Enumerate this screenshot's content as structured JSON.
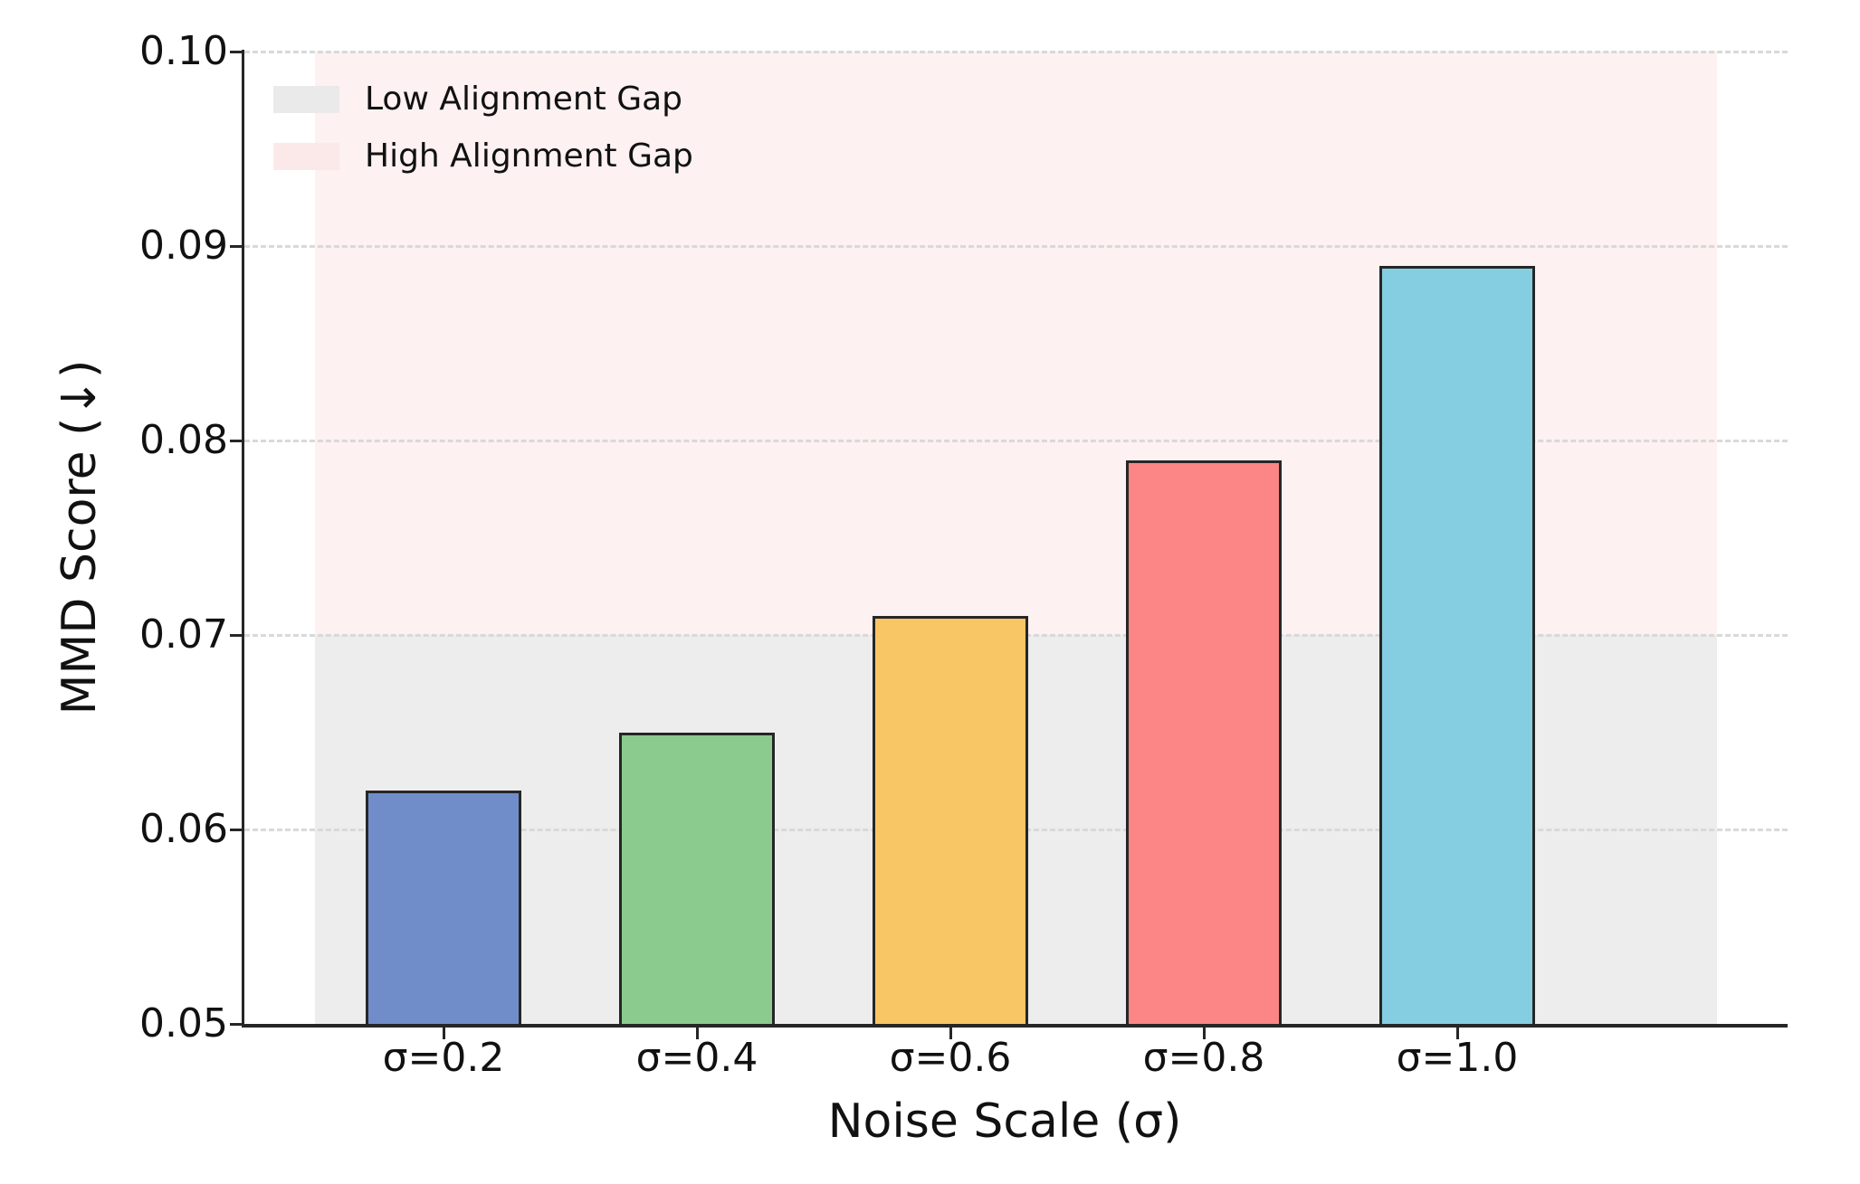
{
  "figure": {
    "background_color": "#ffffff",
    "text_color": "#111111"
  },
  "chart_data": {
    "type": "bar",
    "title": "",
    "xlabel": "Noise Scale (σ)",
    "ylabel": "MMD Score (↓)",
    "categories": [
      "σ=0.2",
      "σ=0.4",
      "σ=0.6",
      "σ=0.8",
      "σ=1.0"
    ],
    "values": [
      0.062,
      0.065,
      0.071,
      0.079,
      0.089
    ],
    "bar_colors": [
      "#708dca",
      "#8ccb8e",
      "#f8c665",
      "#fc8585",
      "#85cde0"
    ],
    "bar_edge_color": "#262626",
    "ylim": [
      0.05,
      0.1
    ],
    "yticks": [
      {
        "value": 0.05,
        "label": "0.05"
      },
      {
        "value": 0.06,
        "label": "0.06"
      },
      {
        "value": 0.07,
        "label": "0.07"
      },
      {
        "value": 0.08,
        "label": "0.08"
      },
      {
        "value": 0.09,
        "label": "0.09"
      },
      {
        "value": 0.1,
        "label": "0.10"
      }
    ],
    "grid": "horizontal dashed, light gray, on",
    "bands": [
      {
        "name": "low-alignment-gap",
        "from": 0.05,
        "to": 0.07,
        "color": "#ededed"
      },
      {
        "name": "high-alignment-gap",
        "from": 0.07,
        "to": 0.1,
        "color": "#fdf1f1"
      }
    ],
    "legend": {
      "position": "upper-left",
      "entries": [
        {
          "label": "Low Alignment Gap",
          "color": "#eaeaea"
        },
        {
          "label": "High Alignment Gap",
          "color": "#fbe9e9"
        }
      ]
    }
  }
}
